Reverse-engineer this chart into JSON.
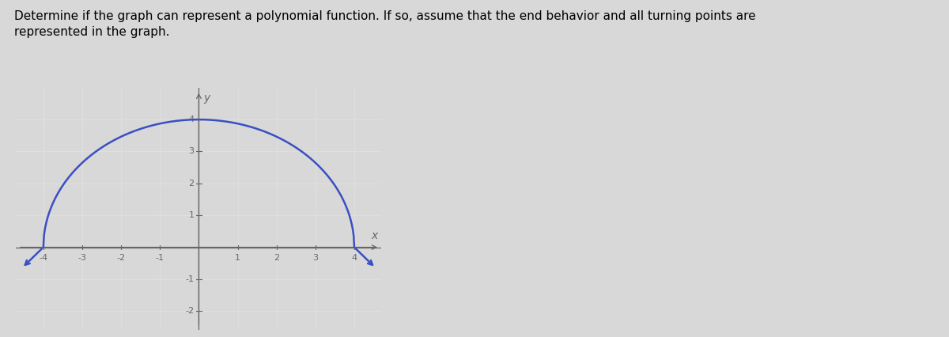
{
  "title_text": "Determine if the graph can represent a polynomial function. If so, assume that the end behavior and all turning points are\nrepresented in the graph.",
  "title_fontsize": 11,
  "title_color": "#000000",
  "bg_color": "#d8d8d8",
  "plot_bg_color": "#c8c8c8",
  "grid_color": "#e0e0e0",
  "axis_color": "#666666",
  "curve_color": "#3a4fc4",
  "curve_linewidth": 1.8,
  "xlim": [
    -4.7,
    4.7
  ],
  "ylim": [
    -2.6,
    5.0
  ],
  "xticks": [
    -4,
    -3,
    -2,
    -1,
    1,
    2,
    3,
    4
  ],
  "yticks": [
    -2,
    -1,
    1,
    2,
    3,
    4
  ],
  "xlabel": "x",
  "ylabel": "y",
  "tick_fontsize": 8,
  "label_fontsize": 10
}
